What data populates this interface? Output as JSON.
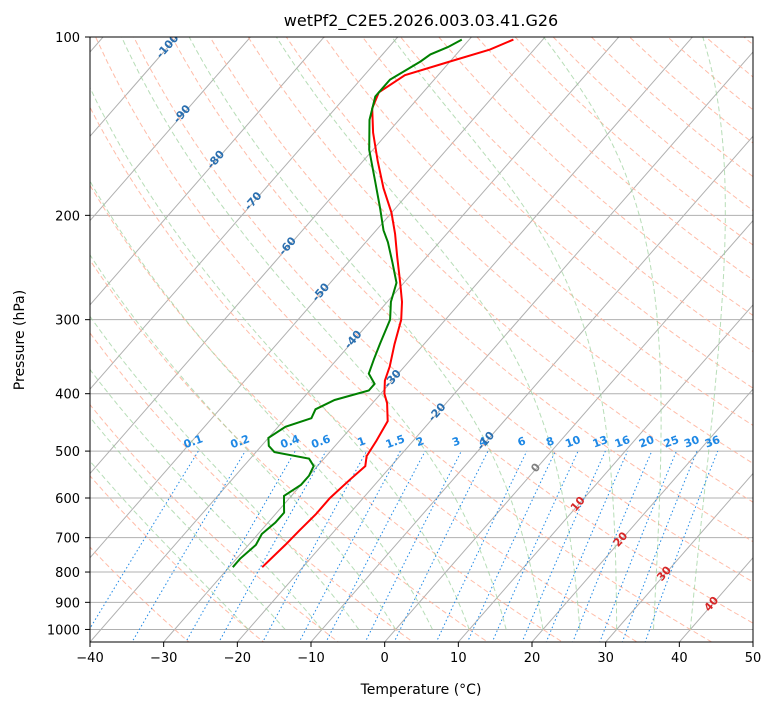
{
  "chart_data": {
    "type": "line",
    "diagram": "skew-t log-p",
    "title": "wetPf2_C2E5.2026.003.03.41.G26",
    "xlabel": "Temperature (°C)",
    "ylabel": "Pressure (hPa)",
    "xlim": [
      -40,
      50
    ],
    "ylim": [
      1050,
      100
    ],
    "y_scale": "log",
    "grid": true,
    "x_ticks": [
      "−40",
      "−30",
      "−20",
      "−10",
      "0",
      "10",
      "20",
      "30",
      "40",
      "50"
    ],
    "y_ticks": [
      "100",
      "200",
      "300",
      "400",
      "500",
      "600",
      "700",
      "800",
      "900",
      "1000"
    ],
    "isotherm_labels": [
      "-100",
      "-90",
      "-80",
      "-70",
      "-60",
      "-50",
      "-40",
      "-30",
      "-20",
      "-10",
      "0",
      "10",
      "20",
      "30",
      "40"
    ],
    "mixing_ratio_labels": [
      "0.1",
      "0.2",
      "0.4",
      "0.6",
      "1",
      "1.5",
      "2",
      "3",
      "4",
      "6",
      "8",
      "10",
      "13",
      "16",
      "20",
      "25",
      "30",
      "36"
    ],
    "series": [
      {
        "name": "Temperature",
        "color": "#ff0000",
        "points": [
          [
            -25.5,
            785
          ],
          [
            -25.0,
            720
          ],
          [
            -24.8,
            680
          ],
          [
            -24.5,
            640
          ],
          [
            -24.5,
            600
          ],
          [
            -24.0,
            560
          ],
          [
            -23.5,
            530
          ],
          [
            -24.5,
            510
          ],
          [
            -25.0,
            480
          ],
          [
            -25.8,
            445
          ],
          [
            -28.0,
            415
          ],
          [
            -29.5,
            400
          ],
          [
            -31.0,
            380
          ],
          [
            -32.0,
            360
          ],
          [
            -34.0,
            330
          ],
          [
            -36.0,
            300
          ],
          [
            -38.0,
            280
          ],
          [
            -40.5,
            260
          ],
          [
            -44.0,
            235
          ],
          [
            -47.0,
            215
          ],
          [
            -50.0,
            198
          ],
          [
            -54.0,
            180
          ],
          [
            -58.0,
            162
          ],
          [
            -62.0,
            145
          ],
          [
            -65.0,
            132
          ],
          [
            -66.0,
            124
          ],
          [
            -64.5,
            116
          ],
          [
            -60.0,
            110
          ],
          [
            -56.0,
            105
          ],
          [
            -54.0,
            101
          ]
        ]
      },
      {
        "name": "Dewpoint",
        "color": "#008000",
        "points": [
          [
            -29.5,
            785
          ],
          [
            -29.5,
            760
          ],
          [
            -29.0,
            720
          ],
          [
            -29.5,
            690
          ],
          [
            -29.0,
            660
          ],
          [
            -29.0,
            635
          ],
          [
            -30.0,
            615
          ],
          [
            -31.0,
            595
          ],
          [
            -30.0,
            570
          ],
          [
            -30.0,
            550
          ],
          [
            -30.5,
            530
          ],
          [
            -32.0,
            515
          ],
          [
            -37.5,
            502
          ],
          [
            -39.0,
            490
          ],
          [
            -40.0,
            475
          ],
          [
            -39.0,
            455
          ],
          [
            -36.5,
            440
          ],
          [
            -37.0,
            425
          ],
          [
            -35.5,
            410
          ],
          [
            -32.0,
            395
          ],
          [
            -32.0,
            385
          ],
          [
            -34.0,
            370
          ],
          [
            -35.0,
            350
          ],
          [
            -36.0,
            330
          ],
          [
            -37.5,
            300
          ],
          [
            -39.5,
            280
          ],
          [
            -41.0,
            260
          ],
          [
            -44.0,
            240
          ],
          [
            -47.0,
            222
          ],
          [
            -49.0,
            212
          ],
          [
            -52.0,
            195
          ],
          [
            -56.0,
            175
          ],
          [
            -60.5,
            155
          ],
          [
            -64.0,
            138
          ],
          [
            -66.0,
            126
          ],
          [
            -66.0,
            118
          ],
          [
            -64.0,
            110
          ],
          [
            -63.5,
            107
          ],
          [
            -62.0,
            104
          ],
          [
            -61.0,
            101
          ]
        ]
      }
    ]
  }
}
